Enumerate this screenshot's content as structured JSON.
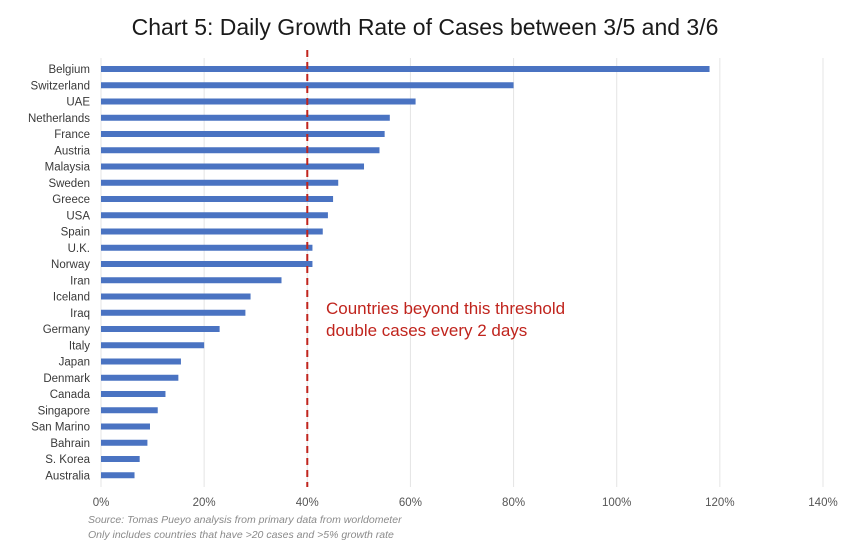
{
  "chart_data": {
    "type": "bar",
    "orientation": "horizontal",
    "title": "Chart 5: Daily Growth Rate of Cases between 3/5 and 3/6",
    "categories": [
      "Belgium",
      "Switzerland",
      "UAE",
      "Netherlands",
      "France",
      "Austria",
      "Malaysia",
      "Sweden",
      "Greece",
      "USA",
      "Spain",
      "U.K.",
      "Norway",
      "Iran",
      "Iceland",
      "Iraq",
      "Germany",
      "Italy",
      "Japan",
      "Denmark",
      "Canada",
      "Singapore",
      "San Marino",
      "Bahrain",
      "S. Korea",
      "Australia"
    ],
    "values": [
      118,
      80,
      61,
      56,
      55,
      54,
      51,
      46,
      45,
      44,
      43,
      41,
      41,
      35,
      29,
      28,
      23,
      20,
      15.5,
      15,
      12.5,
      11,
      9.5,
      9,
      7.5,
      6.5
    ],
    "xlim": [
      0,
      140
    ],
    "x_ticks": [
      "0%",
      "20%",
      "40%",
      "60%",
      "80%",
      "100%",
      "120%",
      "140%"
    ],
    "x_tick_values": [
      0,
      20,
      40,
      60,
      80,
      100,
      120,
      140
    ],
    "grid": "vertical",
    "bar_color": "#4a73c2",
    "threshold": {
      "value": 40,
      "color": "#c0241d",
      "style": "dashed",
      "annotation": [
        "Countries beyond this threshold",
        "double cases every 2 days"
      ]
    },
    "source_lines": [
      "Source: Tomas Pueyo analysis from primary data from worldometer",
      "Only includes countries that have >20 cases and >5% growth rate"
    ]
  }
}
